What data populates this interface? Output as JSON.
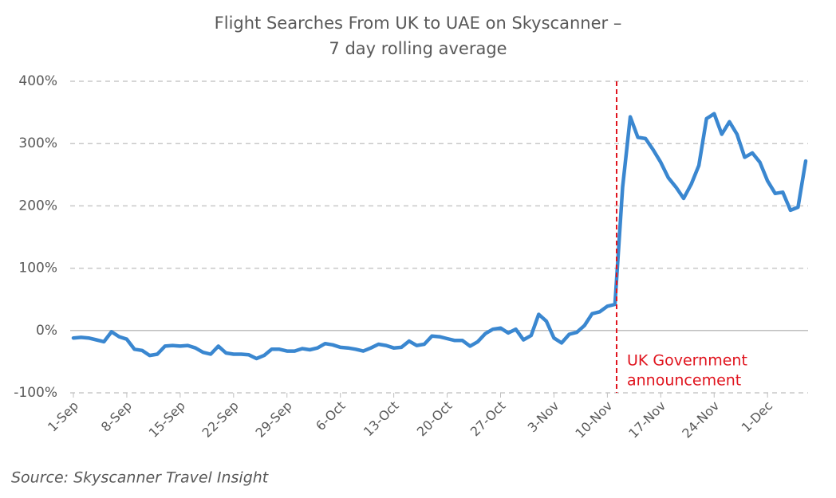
{
  "chart_data": {
    "type": "line",
    "title": [
      "Flight Searches From UK to UAE on Skyscanner –",
      "7 day rolling average"
    ],
    "categories": [
      "1-Sep",
      null,
      null,
      null,
      null,
      null,
      null,
      "8-Sep",
      null,
      null,
      null,
      null,
      null,
      null,
      "15-Sep",
      null,
      null,
      null,
      null,
      null,
      null,
      "22-Sep",
      null,
      null,
      null,
      null,
      null,
      null,
      "29-Sep",
      null,
      null,
      null,
      null,
      null,
      null,
      "6-Oct",
      null,
      null,
      null,
      null,
      null,
      null,
      "13-Oct",
      null,
      null,
      null,
      null,
      null,
      null,
      "20-Oct",
      null,
      null,
      null,
      null,
      null,
      null,
      "27-Oct",
      null,
      null,
      null,
      null,
      null,
      null,
      "3-Nov",
      null,
      null,
      null,
      null,
      null,
      null,
      "10-Nov",
      null,
      null,
      null,
      null,
      null,
      null,
      "17-Nov",
      null,
      null,
      null,
      null,
      null,
      null,
      "24-Nov",
      null,
      null,
      null,
      null,
      null,
      null,
      "1-Dec",
      null,
      null,
      null,
      null,
      null
    ],
    "values": [
      -12,
      -11,
      -12,
      -15,
      -18,
      -2,
      -10,
      -14,
      -30,
      -32,
      -40,
      -38,
      -25,
      -24,
      -25,
      -24,
      -28,
      -35,
      -38,
      -25,
      -36,
      -38,
      -38,
      -39,
      -45,
      -40,
      -30,
      -30,
      -33,
      -33,
      -29,
      -31,
      -28,
      -21,
      -23,
      -27,
      -28,
      -30,
      -33,
      -28,
      -22,
      -24,
      -28,
      -27,
      -17,
      -24,
      -22,
      -9,
      -10,
      -13,
      -16,
      -16,
      -25,
      -18,
      -5,
      2,
      4,
      -4,
      2,
      -15,
      -8,
      26,
      15,
      -12,
      -20,
      -6,
      -3,
      8,
      27,
      30,
      39,
      42,
      230,
      343,
      310,
      308,
      290,
      270,
      245,
      230,
      212,
      235,
      265,
      340,
      348,
      315,
      335,
      315,
      278,
      285,
      270,
      240,
      220,
      222,
      193,
      198,
      272
    ],
    "color": "#3a87d0",
    "ylim": [
      -100,
      400
    ],
    "yticks": [
      {
        "value": -100,
        "label": "-100%"
      },
      {
        "value": 0,
        "label": "0%"
      },
      {
        "value": 100,
        "label": "100%"
      },
      {
        "value": 200,
        "label": "200%"
      },
      {
        "value": 300,
        "label": "300%"
      },
      {
        "value": 400,
        "label": "400%"
      }
    ],
    "grid": true,
    "annotation": [
      "UK Government",
      "announcement"
    ],
    "annotation_color": "#e0141e",
    "source": "Source: Skyscanner Travel Insight"
  }
}
